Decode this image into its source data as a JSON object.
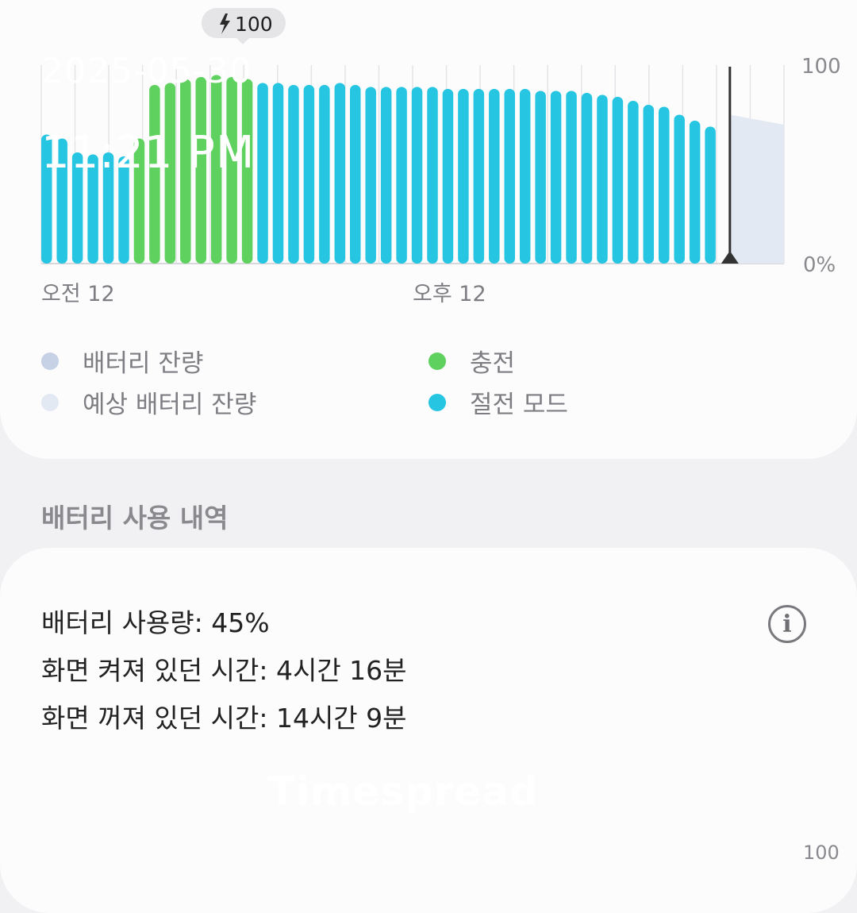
{
  "chart_data": {
    "type": "bar",
    "y_ticks": [
      "100",
      "0%"
    ],
    "x_ticks": [
      "오전 12",
      "오후 12"
    ],
    "ylim": [
      0,
      100
    ],
    "callout": "100",
    "values": [
      65,
      63,
      56,
      55,
      56,
      54,
      63,
      90,
      91,
      93,
      94,
      95,
      94,
      93,
      91,
      91,
      90,
      90,
      90,
      91,
      90,
      89,
      89,
      89,
      89,
      89,
      88,
      88,
      88,
      88,
      88,
      88,
      87,
      87,
      87,
      86,
      85,
      84,
      82,
      80,
      79,
      75,
      72,
      69
    ],
    "modes": [
      "s",
      "s",
      "s",
      "s",
      "s",
      "s",
      "c",
      "c",
      "c",
      "c",
      "c",
      "c",
      "c",
      "c",
      "s",
      "s",
      "s",
      "s",
      "s",
      "s",
      "s",
      "s",
      "s",
      "s",
      "s",
      "s",
      "s",
      "s",
      "s",
      "s",
      "s",
      "s",
      "s",
      "s",
      "s",
      "s",
      "s",
      "s",
      "s",
      "s",
      "s",
      "s",
      "s",
      "s"
    ],
    "projected": [
      75,
      70
    ],
    "colors": {
      "charging": "#5ed15e",
      "power_saving": "#26c6e2",
      "remaining": "#c6d1e6",
      "projected": "#e3e9f3"
    }
  },
  "legend": [
    {
      "label": "배터리 잔량",
      "color": "#c6d1e6"
    },
    {
      "label": "예상 배터리 잔량",
      "color": "#e3e9f3"
    },
    {
      "label": "충전",
      "color": "#5ed15e"
    },
    {
      "label": "절전 모드",
      "color": "#26c6e2"
    }
  ],
  "section_title": "배터리 사용 내역",
  "usage": {
    "battery_used": "배터리 사용량: 45%",
    "screen_on": "화면 켜져 있던 시간: 4시간 16분",
    "screen_off": "화면 꺼져 있던 시간: 14시간 9분"
  },
  "overlay": {
    "date": "2025-05-30",
    "time": "11:21 PM",
    "watermark": "Timespread"
  },
  "next_chart_tick": "100"
}
